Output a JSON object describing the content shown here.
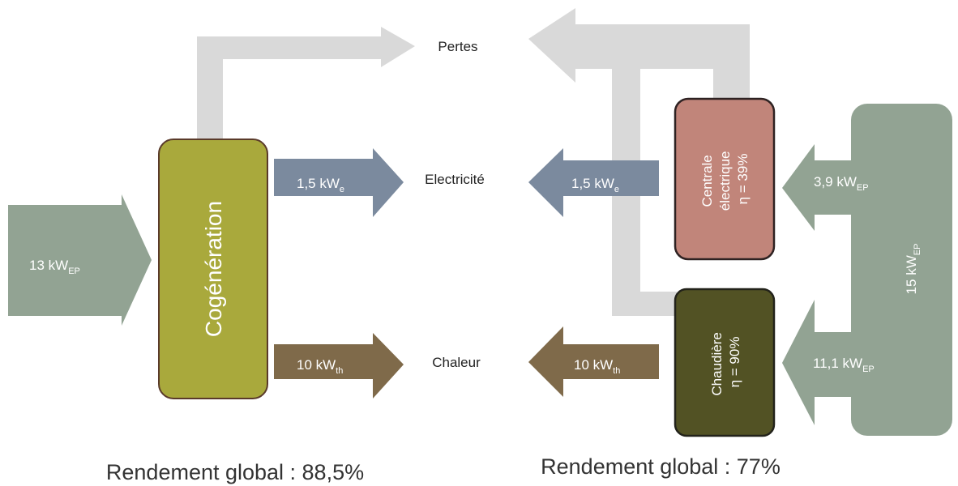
{
  "left": {
    "input": {
      "main": "13 kW",
      "sub": "EP"
    },
    "unit": "Cogénération",
    "electricity": {
      "main": "1,5 kW",
      "sub": "e"
    },
    "heat": {
      "main": "10 kW",
      "sub": "th"
    },
    "summary": "Rendement global : 88,5%"
  },
  "center": {
    "losses": "Pertes",
    "electricity": "Electricité",
    "heat": "Chaleur"
  },
  "right": {
    "plant": [
      "Centrale",
      "électrique",
      "η = 39%"
    ],
    "boiler": [
      "Chaudière",
      "η = 90%"
    ],
    "electricity": {
      "main": "1,5 kW",
      "sub": "e"
    },
    "heat": {
      "main": "10 kW",
      "sub": "th"
    },
    "plant_input": {
      "main": "3,9 kW",
      "sub": "EP"
    },
    "boiler_input": {
      "main": "11,1 kW",
      "sub": "EP"
    },
    "total": {
      "main": "15 kW",
      "sub": "EP"
    },
    "summary": "Rendement global : 77%"
  }
}
